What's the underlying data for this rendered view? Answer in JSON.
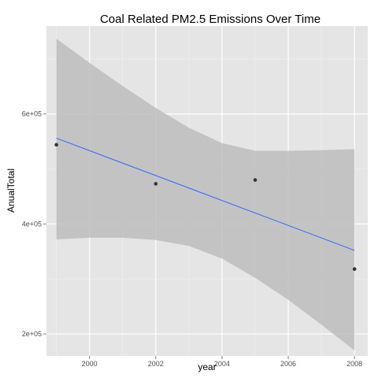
{
  "chart_data": {
    "type": "scatter",
    "title": "Coal Related PM2.5 Emissions Over Time",
    "xlabel": "year",
    "ylabel": "AnualTotal",
    "xlim": [
      1998.7,
      2008.4
    ],
    "ylim": [
      160000,
      760000
    ],
    "x_ticks": [
      2000,
      2002,
      2004,
      2006,
      2008
    ],
    "x_tick_labels": [
      "2000",
      "2002",
      "2004",
      "2006",
      "2008"
    ],
    "y_ticks": [
      200000,
      400000,
      600000
    ],
    "y_tick_labels": [
      "2e+05",
      "4e+05",
      "6e+05"
    ],
    "grid": true,
    "points": [
      {
        "x": 1999,
        "y": 544000
      },
      {
        "x": 2002,
        "y": 473000
      },
      {
        "x": 2005,
        "y": 480000
      },
      {
        "x": 2008,
        "y": 318000
      }
    ],
    "trend_line": {
      "x": [
        1999,
        2008
      ],
      "y": [
        556000,
        352000
      ]
    },
    "confidence_band": {
      "x": [
        1999,
        2000,
        2001,
        2002,
        2003,
        2004,
        2005,
        2006,
        2007,
        2008
      ],
      "upper": [
        737000,
        693000,
        651000,
        611000,
        575000,
        547000,
        533000,
        533000,
        534000,
        536000
      ],
      "lower": [
        372000,
        375000,
        375000,
        371000,
        360000,
        337000,
        302000,
        262000,
        217000,
        170000
      ]
    },
    "colors": {
      "panel": "#e5e5e5",
      "grid_major": "#ffffff",
      "grid_minor": "#f2f2f2",
      "band": "#bdbdbd",
      "line": "#3366ff",
      "point": "#333333"
    }
  }
}
